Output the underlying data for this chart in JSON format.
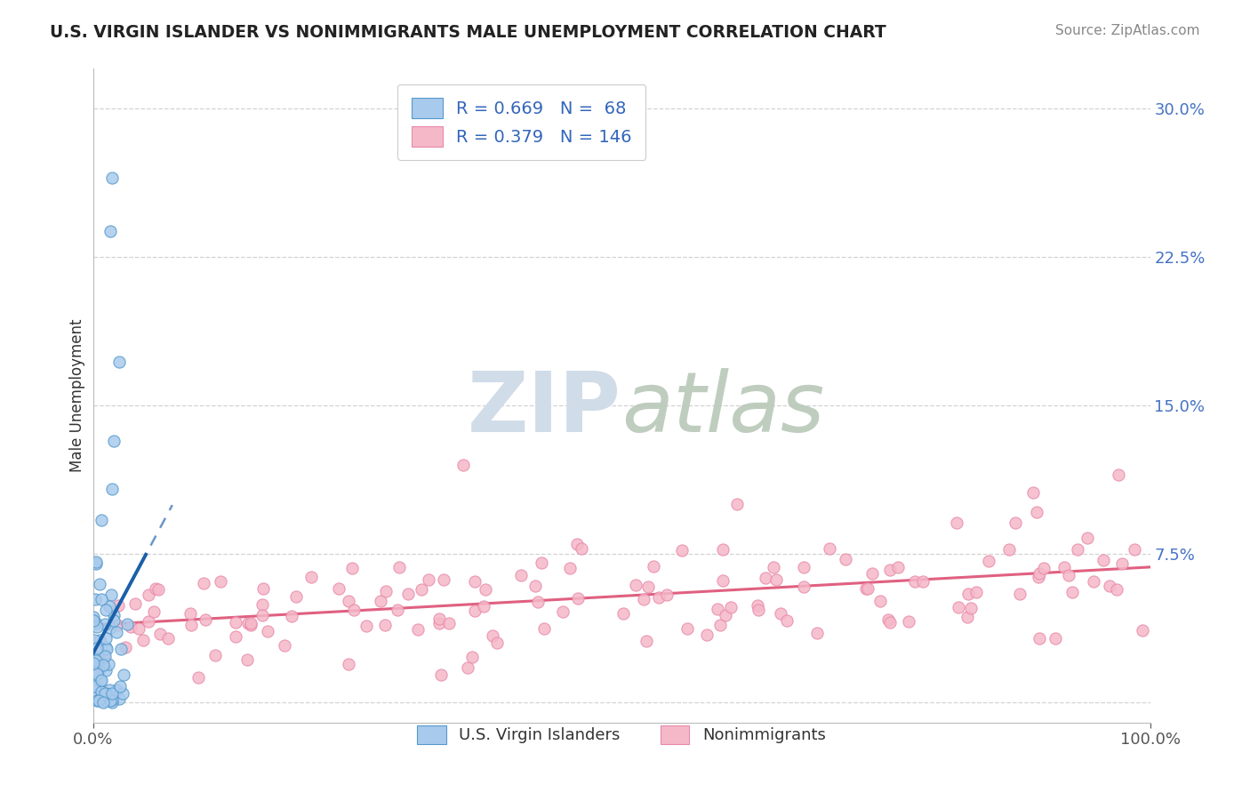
{
  "title": "U.S. VIRGIN ISLANDER VS NONIMMIGRANTS MALE UNEMPLOYMENT CORRELATION CHART",
  "source": "Source: ZipAtlas.com",
  "ylabel": "Male Unemployment",
  "xlim": [
    0.0,
    1.0
  ],
  "ylim": [
    -0.01,
    0.32
  ],
  "yticks": [
    0.0,
    0.075,
    0.15,
    0.225,
    0.3
  ],
  "ytick_labels": [
    "",
    "7.5%",
    "15.0%",
    "22.5%",
    "30.0%"
  ],
  "xticks": [
    0.0,
    1.0
  ],
  "xtick_labels": [
    "0.0%",
    "100.0%"
  ],
  "blue_R": 0.669,
  "blue_N": 68,
  "pink_R": 0.379,
  "pink_N": 146,
  "blue_scatter_color": "#a8caec",
  "blue_scatter_edge": "#5599cc",
  "pink_scatter_color": "#f5b8c8",
  "pink_scatter_edge": "#e88aaa",
  "blue_line_color": "#1a5fa8",
  "pink_line_color": "#e06080",
  "watermark_color": "#d0dce8",
  "background_color": "#ffffff",
  "grid_color": "#c8c8c8",
  "ytick_color": "#4472c4",
  "title_color": "#222222",
  "source_color": "#888888",
  "legend_label_color": "#3366bb"
}
